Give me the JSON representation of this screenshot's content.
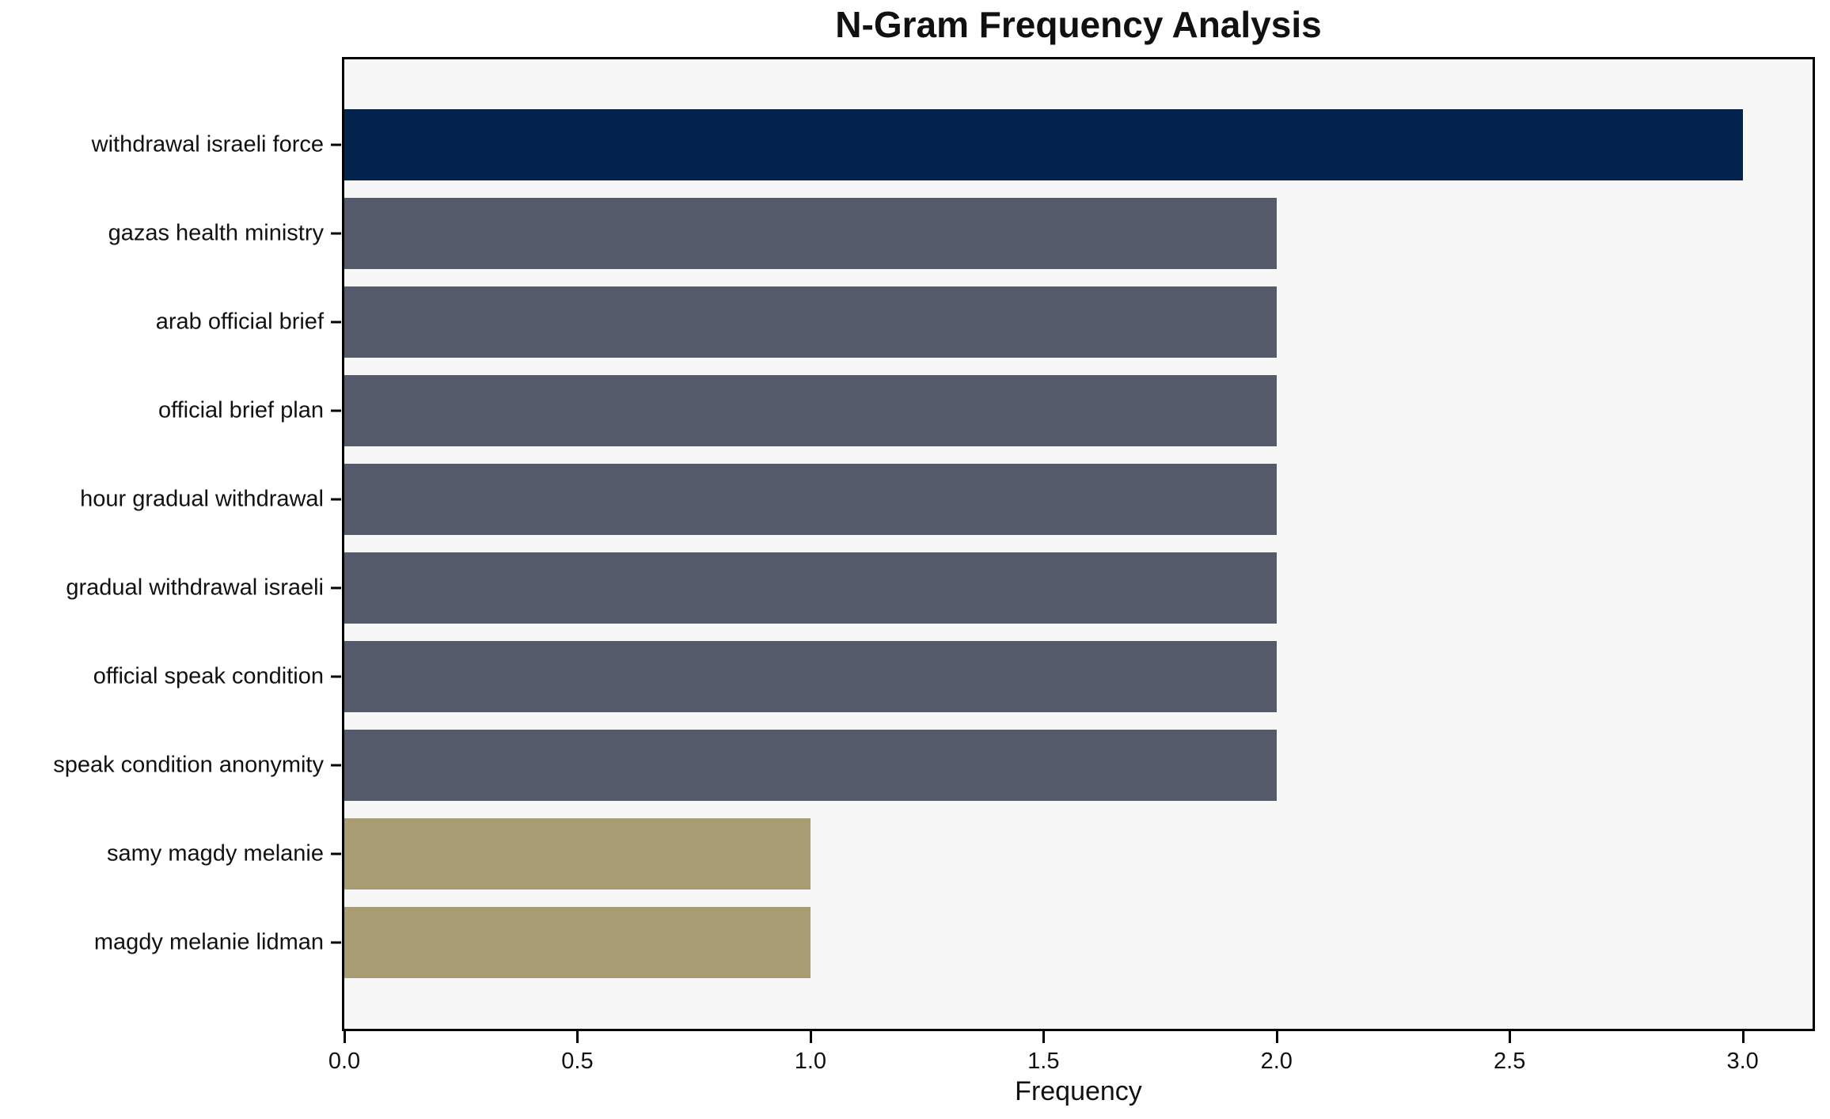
{
  "header": {
    "title": "N-Gram Frequency Analysis"
  },
  "colors": {
    "bar_high": "#02234d",
    "bar_mid": "#565b6c",
    "bar_low": "#a89c72",
    "plot_background": "#f7f7f7",
    "spine": "#000000",
    "page_background": "#ffffff",
    "text": "#111111"
  },
  "chart_data": {
    "type": "bar",
    "orientation": "horizontal",
    "title": "N-Gram Frequency Analysis",
    "xlabel": "Frequency",
    "ylabel": "",
    "categories": [
      "withdrawal israeli force",
      "gazas health ministry",
      "arab official brief",
      "official brief plan",
      "hour gradual withdrawal",
      "gradual withdrawal israeli",
      "official speak condition",
      "speak condition anonymity",
      "samy magdy melanie",
      "magdy melanie lidman"
    ],
    "values": [
      3,
      2,
      2,
      2,
      2,
      2,
      2,
      2,
      1,
      1
    ],
    "bar_colors": [
      "#02234d",
      "#565b6c",
      "#565b6c",
      "#565b6c",
      "#565b6c",
      "#565b6c",
      "#565b6c",
      "#565b6c",
      "#a89c72",
      "#a89c72"
    ],
    "xlim": [
      0,
      3.15
    ],
    "x_tick_values": [
      0,
      0.5,
      1.0,
      1.5,
      2.0,
      2.5,
      3.0
    ],
    "x_tick_labels": [
      "0.0",
      "0.5",
      "1.0",
      "1.5",
      "2.0",
      "2.5",
      "3.0"
    ],
    "grid": false,
    "legend_position": "none"
  }
}
